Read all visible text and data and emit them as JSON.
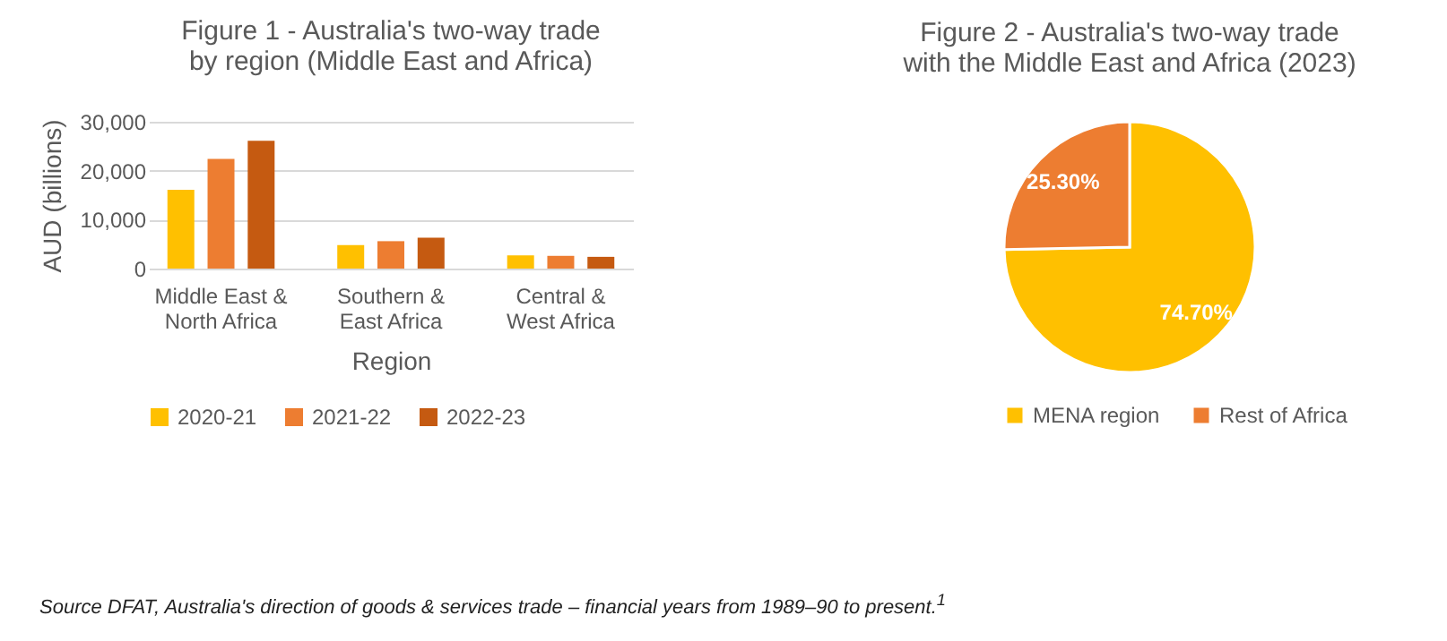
{
  "chart_data": [
    {
      "type": "bar",
      "title": "Figure 1 - Australia's two-way trade by region (Middle East and Africa)",
      "xlabel": "Region",
      "ylabel": "AUD (billions)",
      "categories": [
        "Middle East & North Africa",
        "Southern & East Africa",
        "Central & West Africa"
      ],
      "series": [
        {
          "name": "2020-21",
          "color": "#ffc000",
          "values": [
            16100,
            4800,
            2700
          ]
        },
        {
          "name": "2021-22",
          "color": "#ed7d31",
          "values": [
            22400,
            5600,
            2600
          ]
        },
        {
          "name": "2022-23",
          "color": "#c55a11",
          "values": [
            26100,
            6300,
            2400
          ]
        }
      ],
      "ylim": [
        0,
        30000
      ],
      "yticks": [
        {
          "value": 0,
          "label": "0"
        },
        {
          "value": 10000,
          "label": "10,000"
        },
        {
          "value": 20000,
          "label": "20,000"
        },
        {
          "value": 30000,
          "label": "30,000"
        }
      ],
      "grid": "y",
      "legend": "bottom",
      "annotations": [
        "Source DFAT, Australia's direction of goods & services trade – financial years from 1989–90 to present.$^{1}$"
      ]
    },
    {
      "type": "pie",
      "title": "Figure 2 - Australia's two-way trade with the Middle East and Africa (2023)",
      "categories": [
        "MENA region",
        "Rest of Africa"
      ],
      "values": [
        74.7,
        25.3
      ],
      "colors": [
        "#ffc000",
        "#ed7d31"
      ],
      "value_labels": [
        "74.70%",
        "25.30%"
      ],
      "legend": "bottom"
    }
  ]
}
